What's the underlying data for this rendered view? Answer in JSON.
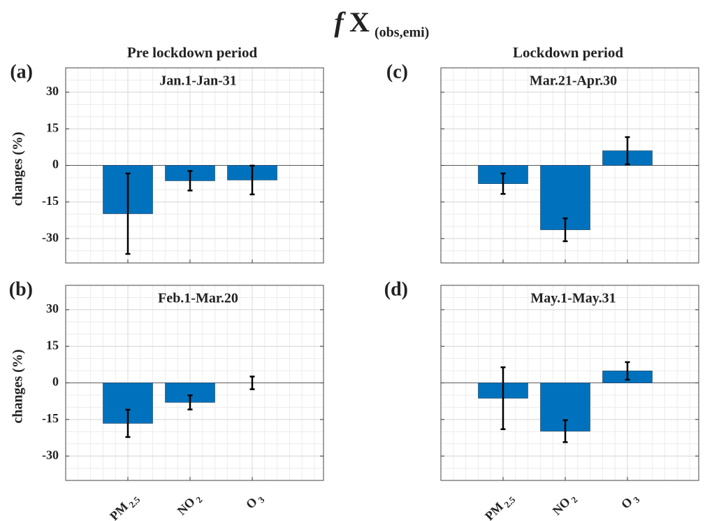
{
  "figure": {
    "title_parts": [
      "f",
      "X",
      "(obs,emi)"
    ],
    "column_titles": [
      "Pre lockdown period",
      "Lockdown period"
    ]
  },
  "chart_data": [
    {
      "type": "bar",
      "panel_label": "(a)",
      "subtitle": "Jan.1-Jan-31",
      "ylabel": "changes (%)",
      "show_ytick_labels": true,
      "categories": [
        null,
        null,
        null
      ],
      "values": [
        -19.8,
        -6.3,
        -6.0
      ],
      "errors": [
        16.5,
        4.0,
        5.9
      ],
      "color": "#0072bd",
      "ylim": [
        -40,
        40
      ],
      "yticks": [
        -30,
        -15,
        0,
        15,
        30
      ],
      "grid": true,
      "minor_grid": true
    },
    {
      "type": "bar",
      "panel_label": "(b)",
      "subtitle": "Feb.1-Mar.20",
      "ylabel": "changes (%)",
      "show_ytick_labels": true,
      "categories": [
        {
          "base": "PM",
          "sub": "2.5"
        },
        {
          "base": "NO",
          "sub": "2"
        },
        {
          "base": "O",
          "sub": "3"
        }
      ],
      "values": [
        -16.6,
        -8.0,
        0
      ],
      "errors": [
        5.6,
        2.9,
        2.6
      ],
      "color": "#0072bd",
      "ylim": [
        -40,
        40
      ],
      "yticks": [
        -30,
        -15,
        0,
        15,
        30
      ],
      "grid": true,
      "minor_grid": true
    },
    {
      "type": "bar",
      "panel_label": "(c)",
      "subtitle": "Mar.21-Apr.30",
      "show_ytick_labels": false,
      "categories": [
        null,
        null,
        null
      ],
      "values": [
        -7.5,
        -26.4,
        6.0
      ],
      "errors": [
        4.2,
        4.7,
        5.6
      ],
      "color": "#0072bd",
      "ylim": [
        -40,
        40
      ],
      "yticks": [
        -30,
        -15,
        0,
        15,
        30
      ],
      "grid": true,
      "minor_grid": true
    },
    {
      "type": "bar",
      "panel_label": "(d)",
      "subtitle": "May.1-May.31",
      "show_ytick_labels": false,
      "categories": [
        {
          "base": "PM",
          "sub": "2.5"
        },
        {
          "base": "NO",
          "sub": "2"
        },
        {
          "base": "O",
          "sub": "3"
        }
      ],
      "values": [
        -6.3,
        -19.8,
        4.9
      ],
      "errors": [
        12.7,
        4.5,
        3.6
      ],
      "color": "#0072bd",
      "ylim": [
        -40,
        40
      ],
      "yticks": [
        -30,
        -15,
        0,
        15,
        30
      ],
      "grid": true,
      "minor_grid": true
    }
  ]
}
